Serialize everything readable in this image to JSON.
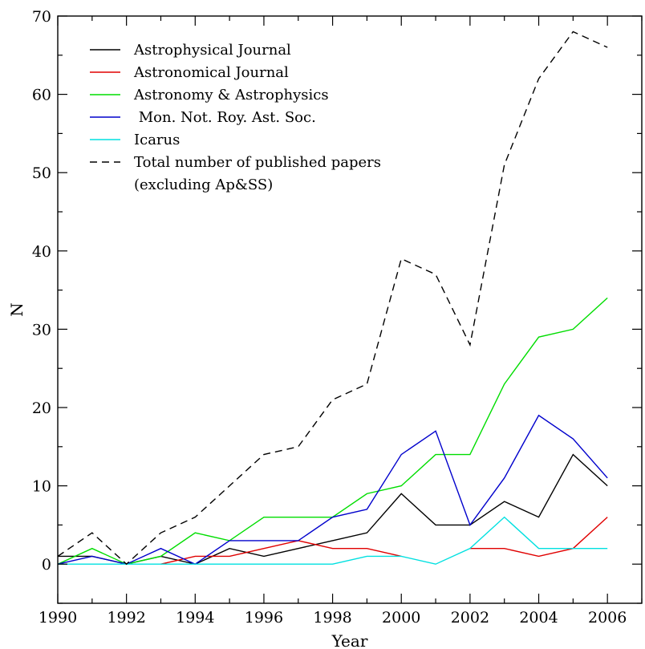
{
  "chart_data": {
    "type": "line",
    "title": "",
    "xlabel": "Year",
    "ylabel": "N",
    "xlim": [
      1990,
      2007
    ],
    "ylim": [
      -5,
      70
    ],
    "x_ticks": [
      1990,
      1992,
      1994,
      1996,
      1998,
      2000,
      2002,
      2004,
      2006
    ],
    "y_ticks": [
      0,
      10,
      20,
      30,
      40,
      50,
      60,
      70
    ],
    "grid": false,
    "legend_position": "top-left",
    "series": [
      {
        "name": "Astrophysical Journal",
        "color": "#000000",
        "dash": "solid",
        "points": [
          [
            1990,
            1
          ],
          [
            1991,
            1
          ],
          [
            1992,
            0
          ],
          [
            1993,
            1
          ],
          [
            1994,
            0
          ],
          [
            1995,
            2
          ],
          [
            1996,
            1
          ],
          [
            1997,
            2
          ],
          [
            1998,
            3
          ],
          [
            1999,
            4
          ],
          [
            2000,
            9
          ],
          [
            2001,
            5
          ],
          [
            2002,
            5
          ],
          [
            2003,
            8
          ],
          [
            2004,
            6
          ],
          [
            2005,
            14
          ],
          [
            2006,
            10
          ]
        ]
      },
      {
        "name": "Astronomical Journal",
        "color": "#e00000",
        "dash": "solid",
        "points": [
          [
            1993,
            0
          ],
          [
            1994,
            1
          ],
          [
            1995,
            1
          ],
          [
            1996,
            2
          ],
          [
            1997,
            3
          ],
          [
            1998,
            2
          ],
          [
            1999,
            2
          ],
          [
            2000,
            1
          ],
          [
            2001,
            null
          ],
          [
            2002,
            2
          ],
          [
            2003,
            2
          ],
          [
            2004,
            1
          ],
          [
            2005,
            2
          ],
          [
            2006,
            6
          ]
        ]
      },
      {
        "name": "Astronomy & Astrophysics",
        "color": "#00dd00",
        "dash": "solid",
        "points": [
          [
            1990,
            0
          ],
          [
            1991,
            2
          ],
          [
            1992,
            0
          ],
          [
            1993,
            1
          ],
          [
            1994,
            4
          ],
          [
            1995,
            3
          ],
          [
            1996,
            6
          ],
          [
            1997,
            6
          ],
          [
            1998,
            6
          ],
          [
            1999,
            9
          ],
          [
            2000,
            10
          ],
          [
            2001,
            14
          ],
          [
            2002,
            14
          ],
          [
            2003,
            23
          ],
          [
            2004,
            29
          ],
          [
            2005,
            30
          ],
          [
            2006,
            34
          ]
        ]
      },
      {
        "name": " Mon. Not. Roy. Ast. Soc.",
        "color": "#0000cc",
        "dash": "solid",
        "points": [
          [
            1990,
            0
          ],
          [
            1991,
            1
          ],
          [
            1992,
            0
          ],
          [
            1993,
            2
          ],
          [
            1994,
            0
          ],
          [
            1995,
            3
          ],
          [
            1996,
            3
          ],
          [
            1997,
            3
          ],
          [
            1998,
            6
          ],
          [
            1999,
            7
          ],
          [
            2000,
            14
          ],
          [
            2001,
            17
          ],
          [
            2002,
            5
          ],
          [
            2003,
            11
          ],
          [
            2004,
            19
          ],
          [
            2005,
            16
          ],
          [
            2006,
            11
          ]
        ]
      },
      {
        "name": "Icarus",
        "color": "#00e0e0",
        "dash": "solid",
        "points": [
          [
            1990,
            0
          ],
          [
            1991,
            0
          ],
          [
            1992,
            0
          ],
          [
            1993,
            0
          ],
          [
            1994,
            0
          ],
          [
            1995,
            0
          ],
          [
            1996,
            0
          ],
          [
            1997,
            0
          ],
          [
            1998,
            0
          ],
          [
            1999,
            1
          ],
          [
            2000,
            1
          ],
          [
            2001,
            0
          ],
          [
            2002,
            2
          ],
          [
            2003,
            6
          ],
          [
            2004,
            2
          ],
          [
            2005,
            2
          ],
          [
            2006,
            2
          ]
        ]
      },
      {
        "name": "Total number of published papers",
        "name_line2": "(excluding Ap&SS)",
        "color": "#000000",
        "dash": "dashed",
        "points": [
          [
            1990,
            1
          ],
          [
            1991,
            4
          ],
          [
            1992,
            0
          ],
          [
            1993,
            4
          ],
          [
            1994,
            6
          ],
          [
            1995,
            10
          ],
          [
            1996,
            14
          ],
          [
            1997,
            15
          ],
          [
            1998,
            21
          ],
          [
            1999,
            23
          ],
          [
            2000,
            39
          ],
          [
            2001,
            37
          ],
          [
            2002,
            28
          ],
          [
            2003,
            51
          ],
          [
            2004,
            62
          ],
          [
            2005,
            68
          ],
          [
            2006,
            66
          ]
        ]
      }
    ]
  }
}
